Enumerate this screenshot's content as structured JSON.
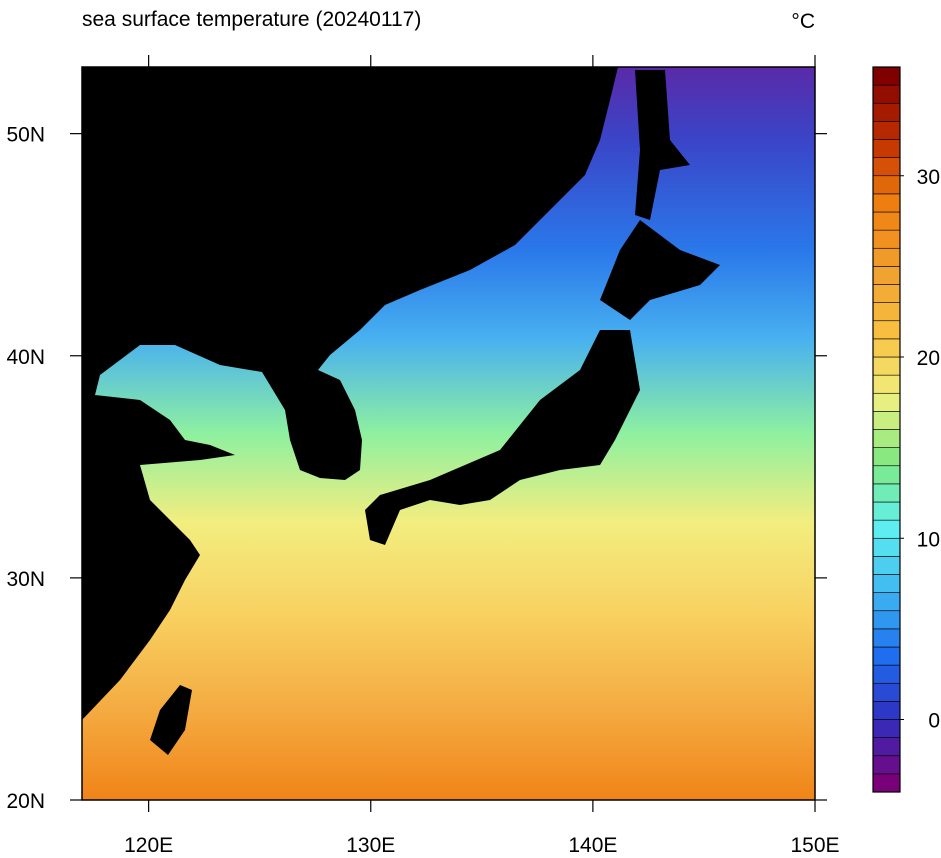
{
  "map": {
    "title": "sea surface temperature (20240117)",
    "unit": "°C",
    "xlim": [
      117,
      150
    ],
    "ylim": [
      20,
      53
    ],
    "xticks": [
      {
        "value": 120,
        "label": "120E"
      },
      {
        "value": 130,
        "label": "130E"
      },
      {
        "value": 140,
        "label": "140E"
      },
      {
        "value": 150,
        "label": "150E"
      }
    ],
    "yticks": [
      {
        "value": 20,
        "label": "20N"
      },
      {
        "value": 30,
        "label": "30N"
      },
      {
        "value": 40,
        "label": "40N"
      },
      {
        "value": 50,
        "label": "50N"
      }
    ],
    "land_color": "#000000"
  },
  "colorbar": {
    "lim": [
      -4,
      36
    ],
    "ticks": [
      0,
      10,
      20,
      30
    ],
    "colors": [
      "#7a007a",
      "#3030c0",
      "#1e70f0",
      "#40b8f0",
      "#60f0f0",
      "#80e880",
      "#f0f080",
      "#f8c040",
      "#f0a030",
      "#f08010",
      "#c03000",
      "#800000"
    ]
  }
}
